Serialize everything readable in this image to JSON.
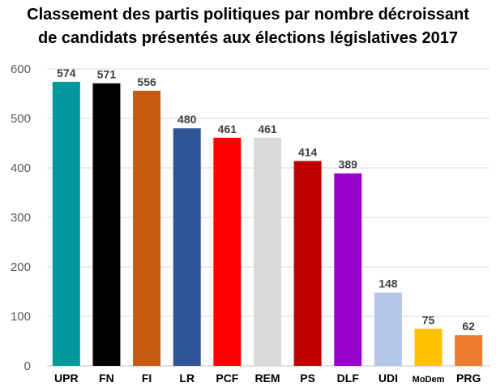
{
  "chart_data": {
    "type": "bar",
    "title_line1": "Classement des partis politiques par nombre décroissant",
    "title_line2": "de candidats présentés aux élections législatives 2017",
    "xlabel": "",
    "ylabel": "",
    "ylim": [
      0,
      600
    ],
    "yticks": [
      0,
      100,
      200,
      300,
      400,
      500,
      600
    ],
    "grid": true,
    "legend": "none",
    "categories": [
      "UPR",
      "FN",
      "FI",
      "LR",
      "PCF",
      "REM",
      "PS",
      "DLF",
      "UDI",
      "MoDem",
      "PRG"
    ],
    "values": [
      574,
      571,
      556,
      480,
      461,
      461,
      414,
      389,
      148,
      75,
      62
    ],
    "colors": [
      "#00989A",
      "#000000",
      "#C55A11",
      "#2F5597",
      "#FF0000",
      "#D9D9D9",
      "#C00000",
      "#9900CC",
      "#B4C7E7",
      "#FFC000",
      "#ED7D31"
    ]
  }
}
